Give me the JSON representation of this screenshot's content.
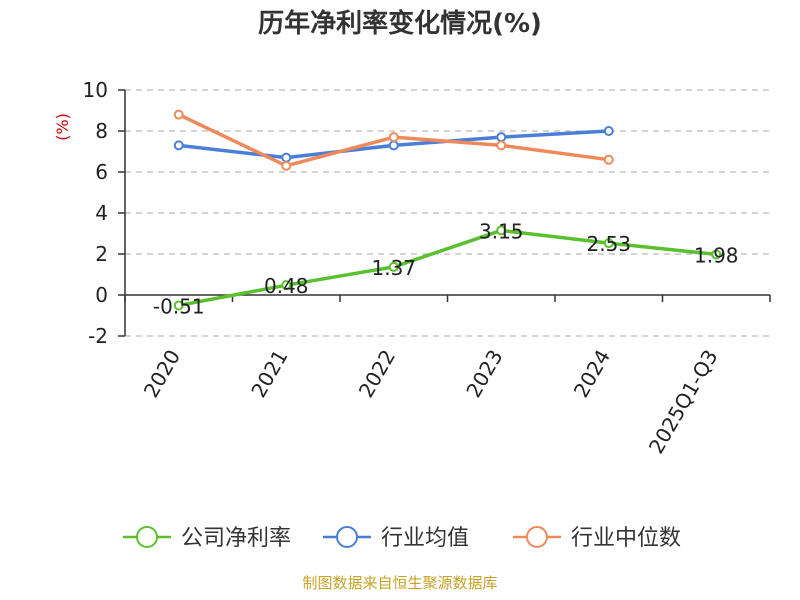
{
  "chart_data": {
    "type": "line",
    "title": "历年净利率变化情况(%)",
    "ylabel": "(%)",
    "ylabel_color": "#cc0000",
    "categories": [
      "2020",
      "2021",
      "2022",
      "2023",
      "2024",
      "2025Q1-Q3"
    ],
    "y_ticks": [
      "10",
      "8",
      "6",
      "4",
      "2",
      "0",
      "-2"
    ],
    "ylim": [
      -2,
      10
    ],
    "grid": "horizontal dashed",
    "legend_position": "bottom",
    "series": [
      {
        "name": "公司净利率",
        "color": "#5ac02f",
        "values": [
          -0.51,
          0.48,
          1.37,
          3.15,
          2.53,
          1.98
        ],
        "labels": [
          "-0.51",
          "0.48",
          "1.37",
          "3.15",
          "2.53",
          "1.98"
        ]
      },
      {
        "name": "行业均值",
        "color": "#4a7fd8",
        "values": [
          7.3,
          6.7,
          7.3,
          7.7,
          8.0,
          null
        ]
      },
      {
        "name": "行业中位数",
        "color": "#f0895a",
        "values": [
          8.8,
          6.3,
          7.7,
          7.3,
          6.6,
          null
        ]
      }
    ]
  },
  "footer": {
    "source_text": "制图数据来自恒生聚源数据库",
    "source_color": "#c9a227"
  }
}
